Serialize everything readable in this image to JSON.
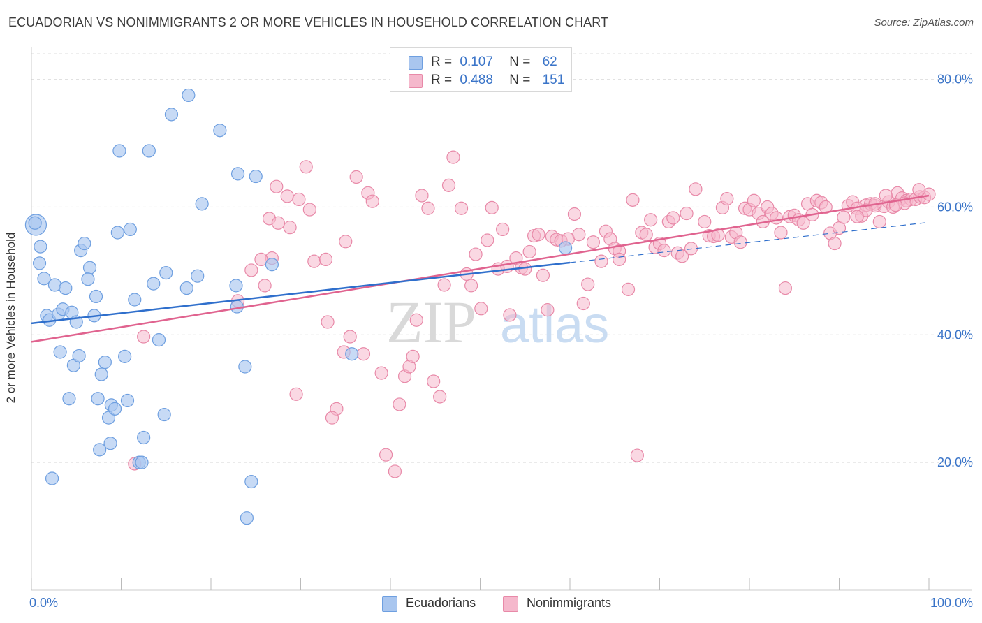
{
  "title": "ECUADORIAN VS NONIMMIGRANTS 2 OR MORE VEHICLES IN HOUSEHOLD CORRELATION CHART",
  "source": "Source: ZipAtlas.com",
  "legend": {
    "rows": [
      {
        "r_label": "R =",
        "r_value": "0.107",
        "n_label": "N =",
        "n_value": "62"
      },
      {
        "r_label": "R =",
        "r_value": "0.488",
        "n_label": "N =",
        "n_value": "151"
      }
    ],
    "bottom": [
      "Ecuadorians",
      "Nonimmigrants"
    ]
  },
  "watermark": {
    "zip": "ZIP",
    "atlas": "atlas"
  },
  "colors": {
    "blue_fill": "#a9c6ef",
    "blue_stroke": "#6e9fe0",
    "blue_line": "#2f6fcc",
    "pink_fill": "#f5b8cc",
    "pink_stroke": "#e889a8",
    "pink_line": "#e0638f",
    "tick_label": "#3a74c8",
    "grid": "#dddddd"
  },
  "chart_data": {
    "type": "scatter",
    "title": "ECUADORIAN VS NONIMMIGRANTS 2 OR MORE VEHICLES IN HOUSEHOLD CORRELATION CHART",
    "xlabel": "",
    "ylabel": "2 or more Vehicles in Household",
    "xlim": [
      0,
      100
    ],
    "ylim": [
      0,
      84
    ],
    "x_tick_labels": [
      "0.0%",
      "100.0%"
    ],
    "y_ticks": [
      20,
      40,
      60,
      80
    ],
    "y_tick_labels": [
      "20.0%",
      "40.0%",
      "60.0%",
      "80.0%"
    ],
    "grid": true,
    "series": [
      {
        "name": "Ecuadorians",
        "points": [
          [
            0.5,
            57.2
          ],
          [
            0.4,
            57.5
          ],
          [
            1.0,
            53.8
          ],
          [
            0.9,
            51.2
          ],
          [
            1.4,
            48.8
          ],
          [
            2.6,
            47.8
          ],
          [
            1.7,
            43.0
          ],
          [
            2.0,
            42.3
          ],
          [
            3.0,
            43.2
          ],
          [
            3.5,
            44.0
          ],
          [
            3.8,
            47.3
          ],
          [
            4.5,
            43.5
          ],
          [
            5.0,
            42.0
          ],
          [
            5.5,
            53.2
          ],
          [
            5.9,
            54.3
          ],
          [
            6.5,
            50.5
          ],
          [
            6.3,
            48.7
          ],
          [
            7.0,
            43.0
          ],
          [
            7.2,
            46.0
          ],
          [
            2.3,
            17.5
          ],
          [
            3.2,
            37.3
          ],
          [
            4.7,
            35.2
          ],
          [
            5.3,
            36.7
          ],
          [
            4.2,
            30.0
          ],
          [
            7.4,
            30.0
          ],
          [
            7.8,
            33.8
          ],
          [
            8.2,
            35.7
          ],
          [
            8.9,
            29.0
          ],
          [
            8.6,
            27.0
          ],
          [
            9.3,
            28.4
          ],
          [
            7.6,
            22.0
          ],
          [
            8.8,
            23.0
          ],
          [
            10.4,
            36.6
          ],
          [
            10.7,
            29.7
          ],
          [
            11.5,
            45.5
          ],
          [
            12.0,
            20.0
          ],
          [
            12.3,
            20.0
          ],
          [
            12.5,
            23.9
          ],
          [
            11.0,
            56.5
          ],
          [
            9.6,
            56.0
          ],
          [
            9.8,
            68.8
          ],
          [
            13.1,
            68.8
          ],
          [
            13.6,
            48.0
          ],
          [
            14.2,
            39.2
          ],
          [
            14.8,
            27.5
          ],
          [
            15.0,
            49.7
          ],
          [
            15.6,
            74.5
          ],
          [
            17.5,
            77.5
          ],
          [
            17.3,
            47.3
          ],
          [
            18.5,
            49.2
          ],
          [
            19.0,
            60.5
          ],
          [
            21.0,
            72.0
          ],
          [
            22.8,
            47.7
          ],
          [
            22.9,
            44.4
          ],
          [
            23.0,
            65.2
          ],
          [
            23.8,
            35.0
          ],
          [
            25.0,
            64.8
          ],
          [
            24.5,
            17.0
          ],
          [
            24.0,
            11.3
          ],
          [
            26.8,
            51.0
          ],
          [
            35.7,
            37.0
          ],
          [
            59.5,
            53.6
          ]
        ]
      },
      {
        "name": "Nonimmigrants",
        "points": [
          [
            11.5,
            19.8
          ],
          [
            12.5,
            39.7
          ],
          [
            23.0,
            45.3
          ],
          [
            24.5,
            50.1
          ],
          [
            26.0,
            47.7
          ],
          [
            26.8,
            52.0
          ],
          [
            25.6,
            51.8
          ],
          [
            26.5,
            58.2
          ],
          [
            27.5,
            57.5
          ],
          [
            28.5,
            61.7
          ],
          [
            27.3,
            63.2
          ],
          [
            28.8,
            56.8
          ],
          [
            29.5,
            30.7
          ],
          [
            29.8,
            61.2
          ],
          [
            30.6,
            66.3
          ],
          [
            31.0,
            59.6
          ],
          [
            31.5,
            51.5
          ],
          [
            32.8,
            51.8
          ],
          [
            33.0,
            42.0
          ],
          [
            34.0,
            28.4
          ],
          [
            33.5,
            27.0
          ],
          [
            34.8,
            37.3
          ],
          [
            35.5,
            39.7
          ],
          [
            35.0,
            54.6
          ],
          [
            36.2,
            64.7
          ],
          [
            37.0,
            37.0
          ],
          [
            37.5,
            62.2
          ],
          [
            38.0,
            60.9
          ],
          [
            39.0,
            34.0
          ],
          [
            39.5,
            21.2
          ],
          [
            40.5,
            18.6
          ],
          [
            41.0,
            29.1
          ],
          [
            41.6,
            33.5
          ],
          [
            42.1,
            35.0
          ],
          [
            42.5,
            36.6
          ],
          [
            42.9,
            42.3
          ],
          [
            43.5,
            61.8
          ],
          [
            44.2,
            59.8
          ],
          [
            44.8,
            32.7
          ],
          [
            45.5,
            30.3
          ],
          [
            46.0,
            47.8
          ],
          [
            46.5,
            63.4
          ],
          [
            47.0,
            67.8
          ],
          [
            47.9,
            59.8
          ],
          [
            48.5,
            49.5
          ],
          [
            49.0,
            47.7
          ],
          [
            49.5,
            52.6
          ],
          [
            50.1,
            44.1
          ],
          [
            50.8,
            54.8
          ],
          [
            51.3,
            59.9
          ],
          [
            52.0,
            50.3
          ],
          [
            52.5,
            56.5
          ],
          [
            53.0,
            50.7
          ],
          [
            53.3,
            43.1
          ],
          [
            54.0,
            52.0
          ],
          [
            54.6,
            50.5
          ],
          [
            55.0,
            50.3
          ],
          [
            55.5,
            53.0
          ],
          [
            56.0,
            55.5
          ],
          [
            56.5,
            55.7
          ],
          [
            57.0,
            49.3
          ],
          [
            57.5,
            43.9
          ],
          [
            58.0,
            55.4
          ],
          [
            58.5,
            54.9
          ],
          [
            59.0,
            54.7
          ],
          [
            59.8,
            55.0
          ],
          [
            60.5,
            58.9
          ],
          [
            61.0,
            55.7
          ],
          [
            61.5,
            44.9
          ],
          [
            62.0,
            47.9
          ],
          [
            62.6,
            54.5
          ],
          [
            63.5,
            51.5
          ],
          [
            64.0,
            56.2
          ],
          [
            64.5,
            55.0
          ],
          [
            65.0,
            53.5
          ],
          [
            65.5,
            53.1
          ],
          [
            65.5,
            51.8
          ],
          [
            66.5,
            47.1
          ],
          [
            67.0,
            61.1
          ],
          [
            67.5,
            21.1
          ],
          [
            68.0,
            56.0
          ],
          [
            68.5,
            55.7
          ],
          [
            69.0,
            58.0
          ],
          [
            69.5,
            53.7
          ],
          [
            70.0,
            54.3
          ],
          [
            70.5,
            53.2
          ],
          [
            71.0,
            57.7
          ],
          [
            71.5,
            58.3
          ],
          [
            72.0,
            52.8
          ],
          [
            72.5,
            52.3
          ],
          [
            73.0,
            59.0
          ],
          [
            73.5,
            53.5
          ],
          [
            74.0,
            62.8
          ],
          [
            75.0,
            57.7
          ],
          [
            75.5,
            55.5
          ],
          [
            76.0,
            55.4
          ],
          [
            76.5,
            55.6
          ],
          [
            77.0,
            59.9
          ],
          [
            77.5,
            61.3
          ],
          [
            78.0,
            55.3
          ],
          [
            78.5,
            56.0
          ],
          [
            79.0,
            54.5
          ],
          [
            79.5,
            59.8
          ],
          [
            80.0,
            59.6
          ],
          [
            80.5,
            61.0
          ],
          [
            81.0,
            59.0
          ],
          [
            81.5,
            57.7
          ],
          [
            82.0,
            60.0
          ],
          [
            82.5,
            59.0
          ],
          [
            83.0,
            58.3
          ],
          [
            83.5,
            56.0
          ],
          [
            84.0,
            47.3
          ],
          [
            84.5,
            58.5
          ],
          [
            85.0,
            58.7
          ],
          [
            85.5,
            58.0
          ],
          [
            86.0,
            57.5
          ],
          [
            86.5,
            60.5
          ],
          [
            87.0,
            58.8
          ],
          [
            87.5,
            61.0
          ],
          [
            88.0,
            60.7
          ],
          [
            88.5,
            60.0
          ],
          [
            89.0,
            55.9
          ],
          [
            89.5,
            54.3
          ],
          [
            90.0,
            56.7
          ],
          [
            90.5,
            58.4
          ],
          [
            91.0,
            60.2
          ],
          [
            91.5,
            60.8
          ],
          [
            92.0,
            59.8
          ],
          [
            92.5,
            58.6
          ],
          [
            93.0,
            60.3
          ],
          [
            93.5,
            60.5
          ],
          [
            94.0,
            60.2
          ],
          [
            94.5,
            57.7
          ],
          [
            95.0,
            60.1
          ],
          [
            95.5,
            60.8
          ],
          [
            96.0,
            60.0
          ],
          [
            96.5,
            62.2
          ],
          [
            97.0,
            61.4
          ],
          [
            97.5,
            61.0
          ],
          [
            98.0,
            61.2
          ],
          [
            98.5,
            61.2
          ],
          [
            99.0,
            61.6
          ],
          [
            99.5,
            61.5
          ],
          [
            100.0,
            62.0
          ],
          [
            97.3,
            60.6
          ],
          [
            96.3,
            60.3
          ],
          [
            95.2,
            61.8
          ],
          [
            94.0,
            60.5
          ],
          [
            93.0,
            59.5
          ],
          [
            92.0,
            58.5
          ],
          [
            98.9,
            62.7
          ]
        ]
      }
    ],
    "trend_lines": [
      {
        "series": "Ecuadorians",
        "solid_from": [
          0,
          41.8
        ],
        "solid_to": [
          60,
          51.3
        ],
        "dashed_to": [
          100,
          57.6
        ]
      },
      {
        "series": "Nonimmigrants",
        "from": [
          0,
          38.9
        ],
        "to": [
          100,
          61.8
        ]
      }
    ]
  }
}
